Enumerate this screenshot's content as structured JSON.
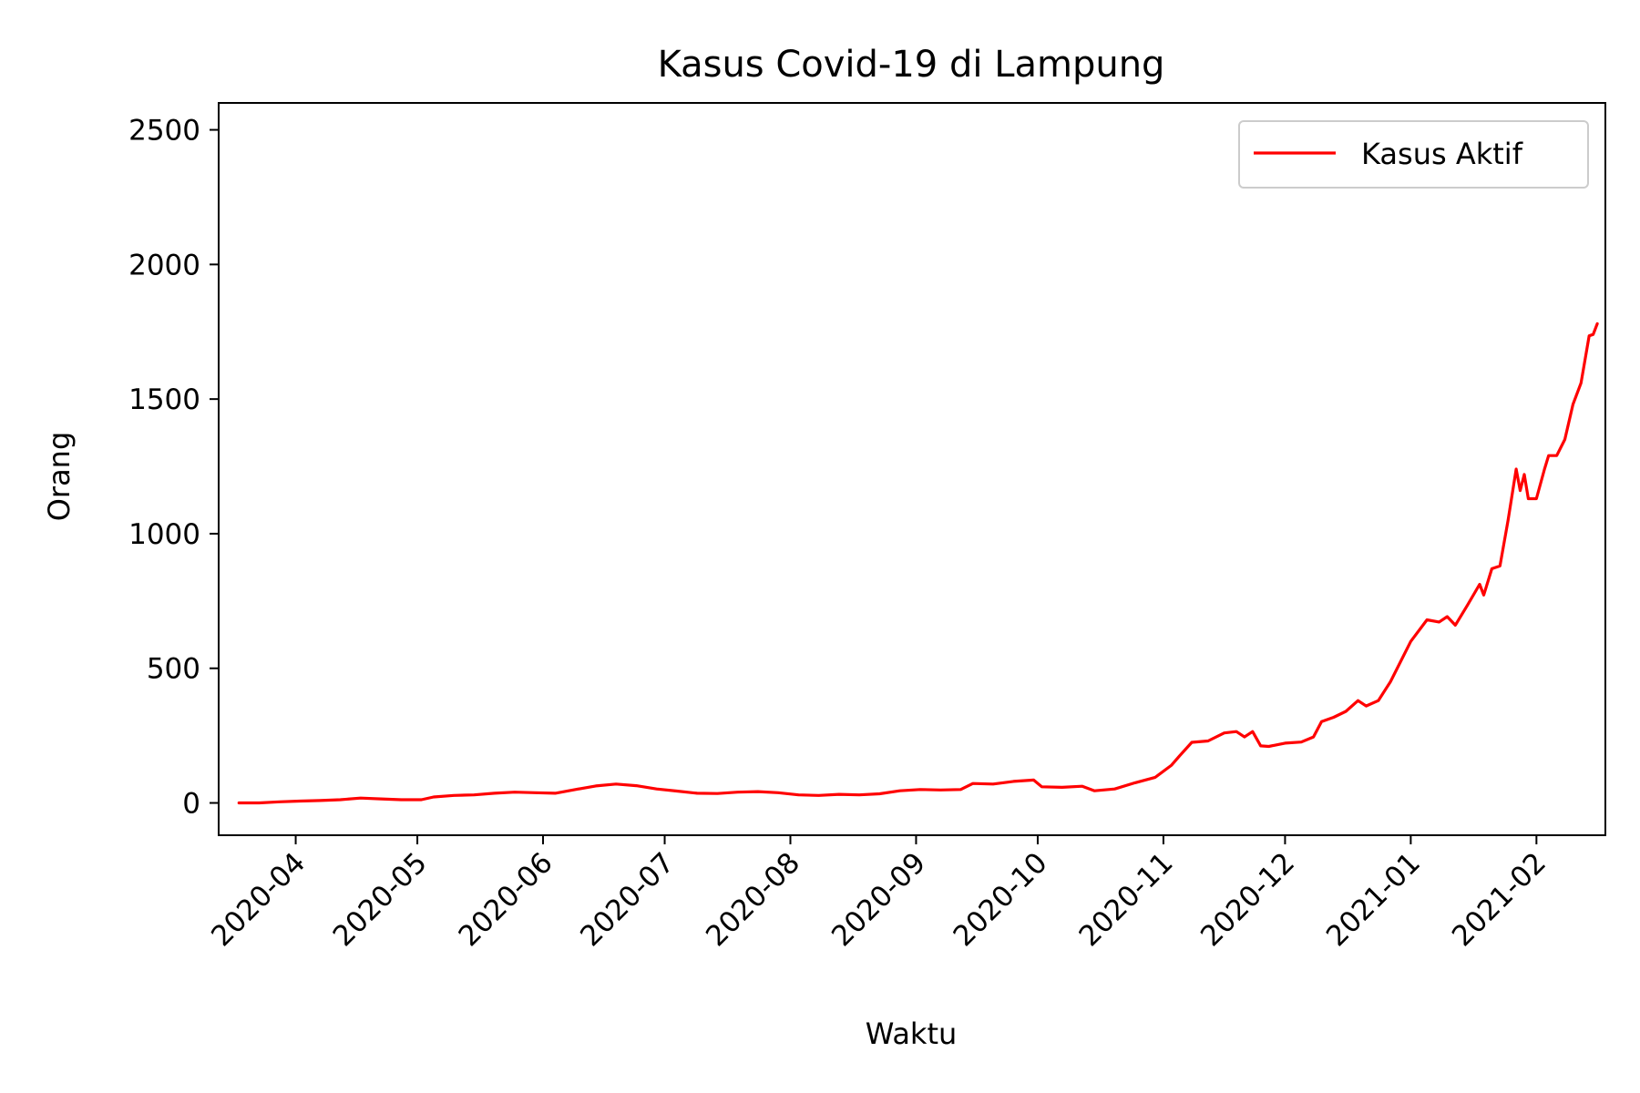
{
  "chart_data": {
    "type": "line",
    "title": "Kasus Covid-19 di Lampung",
    "xlabel": "Waktu",
    "ylabel": "Orang",
    "xlim": [
      "2020-03-13",
      "2021-02-18"
    ],
    "ylim": [
      -120,
      2600
    ],
    "x_ticks": [
      "2020-04",
      "2020-05",
      "2020-06",
      "2020-07",
      "2020-08",
      "2020-09",
      "2020-10",
      "2020-11",
      "2020-12",
      "2021-01",
      "2021-02"
    ],
    "y_ticks": [
      0,
      500,
      1000,
      1500,
      2000,
      2500
    ],
    "grid": false,
    "legend": "upper-right",
    "series": [
      {
        "name": "Kasus Aktif",
        "color": "#ff0000",
        "points": [
          [
            "2020-03-18",
            0
          ],
          [
            "2020-03-23",
            0
          ],
          [
            "2020-03-28",
            4
          ],
          [
            "2020-04-02",
            7
          ],
          [
            "2020-04-07",
            9
          ],
          [
            "2020-04-12",
            12
          ],
          [
            "2020-04-17",
            18
          ],
          [
            "2020-04-22",
            15
          ],
          [
            "2020-04-27",
            12
          ],
          [
            "2020-05-02",
            12
          ],
          [
            "2020-05-05",
            22
          ],
          [
            "2020-05-10",
            28
          ],
          [
            "2020-05-15",
            30
          ],
          [
            "2020-05-20",
            36
          ],
          [
            "2020-05-25",
            40
          ],
          [
            "2020-05-30",
            38
          ],
          [
            "2020-06-04",
            36
          ],
          [
            "2020-06-09",
            50
          ],
          [
            "2020-06-14",
            63
          ],
          [
            "2020-06-19",
            70
          ],
          [
            "2020-06-24",
            64
          ],
          [
            "2020-06-29",
            52
          ],
          [
            "2020-07-04",
            44
          ],
          [
            "2020-07-09",
            36
          ],
          [
            "2020-07-14",
            35
          ],
          [
            "2020-07-19",
            40
          ],
          [
            "2020-07-24",
            42
          ],
          [
            "2020-07-29",
            38
          ],
          [
            "2020-08-03",
            30
          ],
          [
            "2020-08-08",
            28
          ],
          [
            "2020-08-13",
            32
          ],
          [
            "2020-08-18",
            30
          ],
          [
            "2020-08-23",
            34
          ],
          [
            "2020-08-28",
            45
          ],
          [
            "2020-09-02",
            50
          ],
          [
            "2020-09-07",
            48
          ],
          [
            "2020-09-12",
            50
          ],
          [
            "2020-09-15",
            72
          ],
          [
            "2020-09-20",
            70
          ],
          [
            "2020-09-25",
            80
          ],
          [
            "2020-09-30",
            85
          ],
          [
            "2020-10-02",
            60
          ],
          [
            "2020-10-07",
            58
          ],
          [
            "2020-10-12",
            62
          ],
          [
            "2020-10-15",
            45
          ],
          [
            "2020-10-20",
            52
          ],
          [
            "2020-10-25",
            75
          ],
          [
            "2020-10-30",
            95
          ],
          [
            "2020-11-03",
            140
          ],
          [
            "2020-11-05",
            175
          ],
          [
            "2020-11-08",
            225
          ],
          [
            "2020-11-12",
            230
          ],
          [
            "2020-11-16",
            260
          ],
          [
            "2020-11-19",
            265
          ],
          [
            "2020-11-21",
            245
          ],
          [
            "2020-11-23",
            265
          ],
          [
            "2020-11-25",
            212
          ],
          [
            "2020-11-27",
            210
          ],
          [
            "2020-12-01",
            222
          ],
          [
            "2020-12-05",
            226
          ],
          [
            "2020-12-08",
            245
          ],
          [
            "2020-12-10",
            302
          ],
          [
            "2020-12-13",
            318
          ],
          [
            "2020-12-16",
            340
          ],
          [
            "2020-12-19",
            380
          ],
          [
            "2020-12-21",
            360
          ],
          [
            "2020-12-24",
            380
          ],
          [
            "2020-12-27",
            450
          ],
          [
            "2020-12-30",
            540
          ],
          [
            "2021-01-01",
            600
          ],
          [
            "2021-01-05",
            680
          ],
          [
            "2021-01-08",
            672
          ],
          [
            "2021-01-10",
            692
          ],
          [
            "2021-01-12",
            660
          ],
          [
            "2021-01-15",
            735
          ],
          [
            "2021-01-18",
            812
          ],
          [
            "2021-01-19",
            772
          ],
          [
            "2021-01-21",
            870
          ],
          [
            "2021-01-23",
            880
          ],
          [
            "2021-01-25",
            1050
          ],
          [
            "2021-01-27",
            1240
          ],
          [
            "2021-01-28",
            1160
          ],
          [
            "2021-01-29",
            1220
          ],
          [
            "2021-01-30",
            1130
          ],
          [
            "2021-02-01",
            1130
          ],
          [
            "2021-02-03",
            1240
          ],
          [
            "2021-02-04",
            1290
          ],
          [
            "2021-02-06",
            1290
          ],
          [
            "2021-02-08",
            1350
          ],
          [
            "2021-02-10",
            1480
          ],
          [
            "2021-02-12",
            1560
          ],
          [
            "2021-02-14",
            1735
          ],
          [
            "2021-02-15",
            1740
          ],
          [
            "2021-02-16",
            1780
          ]
        ]
      }
    ]
  }
}
